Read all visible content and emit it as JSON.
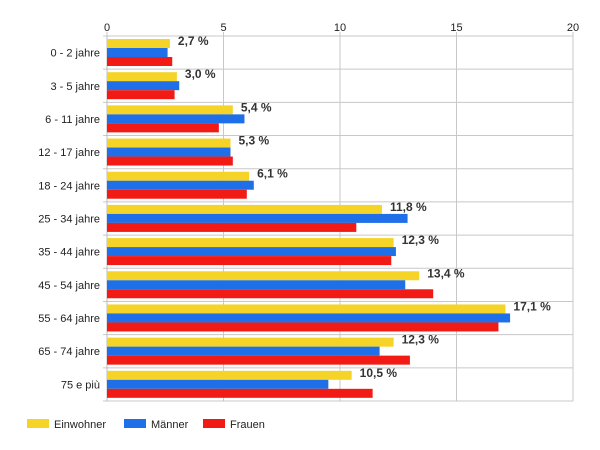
{
  "chart_data": {
    "type": "bar",
    "orientation": "horizontal",
    "categories": [
      "0 - 2 jahre",
      "3 - 5 jahre",
      "6 - 11 jahre",
      "12 - 17 jahre",
      "18 - 24 jahre",
      "25 - 34 jahre",
      "35 - 44 jahre",
      "45 - 54 jahre",
      "55 - 64 jahre",
      "65 - 74 jahre",
      "75 e più"
    ],
    "series": [
      {
        "name": "Einwohner",
        "color": "#f5d327",
        "values": [
          2.7,
          3.0,
          5.4,
          5.3,
          6.1,
          11.8,
          12.3,
          13.4,
          17.1,
          12.3,
          10.5
        ]
      },
      {
        "name": "Männer",
        "color": "#1f6fe8",
        "values": [
          2.6,
          3.1,
          5.9,
          5.3,
          6.3,
          12.9,
          12.4,
          12.8,
          17.3,
          11.7,
          9.5
        ]
      },
      {
        "name": "Frauen",
        "color": "#f21a14",
        "values": [
          2.8,
          2.9,
          4.8,
          5.4,
          6.0,
          10.7,
          12.2,
          14.0,
          16.8,
          13.0,
          11.4
        ]
      }
    ],
    "data_labels": [
      "2,7 %",
      "3,0 %",
      "5,4 %",
      "5,3 %",
      "6,1 %",
      "11,8 %",
      "12,3 %",
      "13,4 %",
      "17,1 %",
      "12,3 %",
      "10,5 %"
    ],
    "xticks": [
      "0",
      "5",
      "10",
      "15",
      "20"
    ],
    "xlim": [
      0,
      20
    ],
    "x_axis_position": "top",
    "grid": true,
    "legend_position": "bottom-left"
  }
}
